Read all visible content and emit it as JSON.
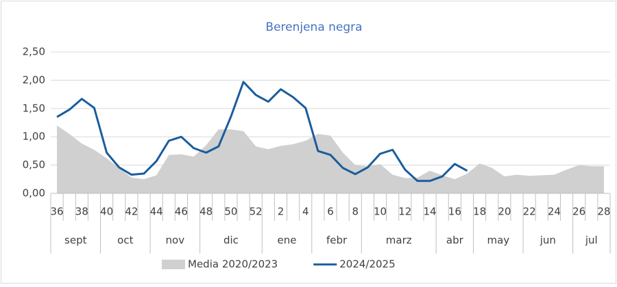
{
  "chart_data": {
    "type": "line",
    "title": "Berenjena negra",
    "categories": [
      "36",
      null,
      "38",
      null,
      "40",
      null,
      "42",
      null,
      "44",
      null,
      "46",
      null,
      "48",
      null,
      "50",
      null,
      "52",
      null,
      "2",
      null,
      "4",
      null,
      "6",
      null,
      "8",
      null,
      "10",
      null,
      "12",
      null,
      "14",
      null,
      "16",
      null,
      "18",
      null,
      "20",
      null,
      "22",
      null,
      "24",
      null,
      "26",
      null,
      "28"
    ],
    "month_groups": [
      {
        "label": "sept",
        "span": 4
      },
      {
        "label": "oct",
        "span": 4
      },
      {
        "label": "nov",
        "span": 4
      },
      {
        "label": "dic",
        "span": 5
      },
      {
        "label": "ene",
        "span": 4
      },
      {
        "label": "febr",
        "span": 4
      },
      {
        "label": "marz",
        "span": 6
      },
      {
        "label": "abr",
        "span": 3
      },
      {
        "label": "may",
        "span": 4
      },
      {
        "label": "jun",
        "span": 4
      },
      {
        "label": "jul",
        "span": 3
      }
    ],
    "series": [
      {
        "name": "Media 2020/2023",
        "kind": "area",
        "color": "#d0d0d0",
        "values": [
          1.2,
          1.05,
          0.88,
          0.77,
          0.62,
          0.45,
          0.28,
          0.25,
          0.32,
          0.68,
          0.69,
          0.65,
          0.85,
          1.13,
          1.13,
          1.1,
          0.83,
          0.78,
          0.84,
          0.87,
          0.93,
          1.05,
          1.02,
          0.72,
          0.5,
          0.48,
          0.52,
          0.33,
          0.27,
          0.28,
          0.4,
          0.32,
          0.25,
          0.35,
          0.53,
          0.45,
          0.3,
          0.33,
          0.31,
          0.32,
          0.33,
          0.42,
          0.5,
          0.48,
          0.48
        ]
      },
      {
        "name": "2024/2025",
        "kind": "line",
        "color": "#1a5c9c",
        "values": [
          1.35,
          1.48,
          1.67,
          1.51,
          0.72,
          0.46,
          0.33,
          0.35,
          0.57,
          0.93,
          1.0,
          0.8,
          0.72,
          0.83,
          1.36,
          1.97,
          1.74,
          1.62,
          1.84,
          1.7,
          1.51,
          0.75,
          0.68,
          0.45,
          0.34,
          0.46,
          0.7,
          0.77,
          0.42,
          0.22,
          0.22,
          0.3,
          0.52,
          0.4,
          null,
          null,
          null,
          null,
          null,
          null,
          null,
          null,
          null,
          null,
          null
        ]
      }
    ],
    "ylim": [
      0,
      2.5
    ],
    "yticks": [
      {
        "value": 0,
        "label": "0,00"
      },
      {
        "value": 0.5,
        "label": "0,50"
      },
      {
        "value": 1,
        "label": "1,00"
      },
      {
        "value": 1.5,
        "label": "1,50"
      },
      {
        "value": 2,
        "label": "2,00"
      },
      {
        "value": 2.5,
        "label": "2,50"
      }
    ],
    "grid": true,
    "legend": "bottom"
  }
}
